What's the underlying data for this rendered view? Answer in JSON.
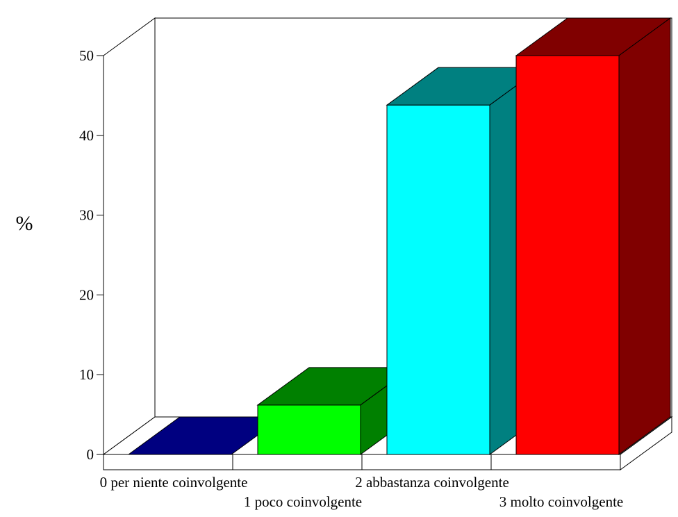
{
  "chart_data": {
    "type": "bar",
    "title": "",
    "xlabel": "",
    "ylabel": "%",
    "ylim": [
      0,
      50
    ],
    "yticks": [
      0,
      10,
      20,
      30,
      40,
      50
    ],
    "grid": false,
    "legend": "none",
    "categories": [
      "0 per niente coinvolgente",
      "1 poco coinvolgente",
      "2 abbastanza coinvolgente",
      "3 molto coinvolgente"
    ],
    "values": [
      0,
      6.2,
      43.8,
      50
    ],
    "colors": [
      {
        "front": "#0000ff",
        "top": "#000080",
        "side": "#000060"
      },
      {
        "front": "#00ff00",
        "top": "#008000",
        "side": "#008000"
      },
      {
        "front": "#00ffff",
        "top": "#008080",
        "side": "#008080"
      },
      {
        "front": "#ff0000",
        "top": "#800000",
        "side": "#800000"
      }
    ]
  }
}
